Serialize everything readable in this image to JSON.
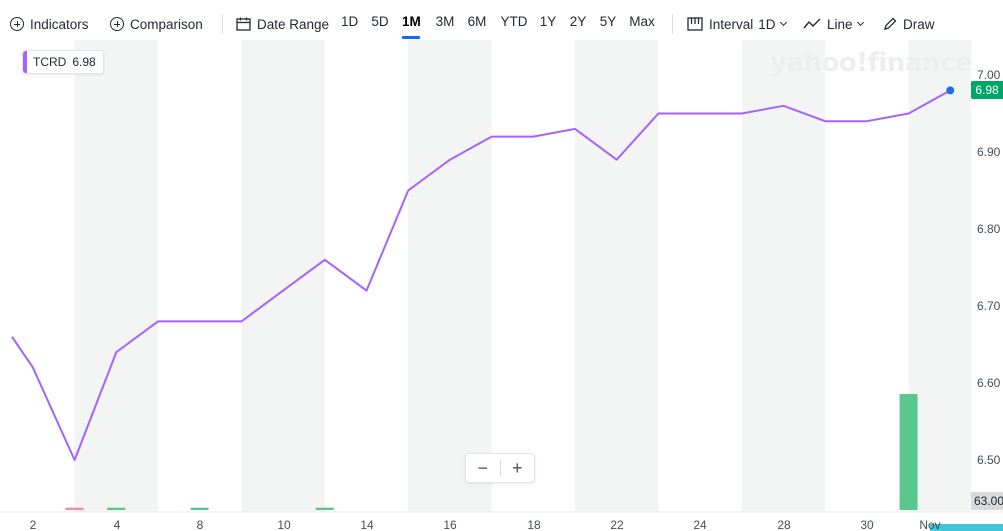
{
  "toolbar": {
    "indicators_label": "Indicators",
    "comparison_label": "Comparison",
    "date_range_label": "Date Range",
    "ranges": [
      "1D",
      "5D",
      "1M",
      "3M",
      "6M",
      "YTD",
      "1Y",
      "2Y",
      "5Y",
      "Max"
    ],
    "active_range": "1M",
    "interval_label": "Interval",
    "interval_value": "1D",
    "chart_type_label": "Line",
    "draw_label": "Draw"
  },
  "legend": {
    "symbol": "TCRD",
    "value": "6.98"
  },
  "watermark": "yahoo!finance",
  "zoom": {
    "minus": "−",
    "plus": "+"
  },
  "colors": {
    "line": "#a562fc",
    "price_tag": "#00a568",
    "volume_up": "#5ac88c",
    "volume_down": "#f28b9a",
    "weekend_band": "#f3f5f4",
    "current_dot": "#1f6fe0",
    "volume_cyan": "#3fc7d9"
  },
  "chart_data": {
    "type": "line",
    "symbol": "TCRD",
    "x_tick_labels": [
      "2",
      "4",
      "8",
      "10",
      "14",
      "16",
      "18",
      "22",
      "24",
      "28",
      "30",
      "Nov"
    ],
    "y_tick_labels": [
      "7.00",
      "6.90",
      "6.80",
      "6.70",
      "6.60",
      "6.50"
    ],
    "ylim": [
      6.44,
      7.02
    ],
    "current_price_label": "6.98",
    "volume_axis_label": "63.00",
    "series": [
      {
        "values": [
          {
            "t": 0.0,
            "v": 6.66
          },
          {
            "t": 0.5,
            "v": 6.62
          },
          {
            "t": 1.5,
            "v": 6.5
          },
          {
            "t": 2.5,
            "v": 6.64
          },
          {
            "t": 3.5,
            "v": 6.68
          },
          {
            "t": 4.5,
            "v": 6.68
          },
          {
            "t": 5.5,
            "v": 6.68
          },
          {
            "t": 6.5,
            "v": 6.72
          },
          {
            "t": 7.5,
            "v": 6.76
          },
          {
            "t": 8.5,
            "v": 6.72
          },
          {
            "t": 9.5,
            "v": 6.85
          },
          {
            "t": 10.5,
            "v": 6.89
          },
          {
            "t": 11.5,
            "v": 6.92
          },
          {
            "t": 12.5,
            "v": 6.92
          },
          {
            "t": 13.5,
            "v": 6.93
          },
          {
            "t": 14.5,
            "v": 6.89
          },
          {
            "t": 15.5,
            "v": 6.95
          },
          {
            "t": 16.5,
            "v": 6.95
          },
          {
            "t": 17.5,
            "v": 6.95
          },
          {
            "t": 18.5,
            "v": 6.96
          },
          {
            "t": 19.5,
            "v": 6.94
          },
          {
            "t": 20.5,
            "v": 6.94
          },
          {
            "t": 21.5,
            "v": 6.95
          },
          {
            "t": 22.5,
            "v": 6.98
          }
        ]
      }
    ],
    "volume_fraction": [
      {
        "t": 1.5,
        "f": 0.02,
        "dir": "down"
      },
      {
        "t": 2.5,
        "f": 0.02,
        "dir": "up"
      },
      {
        "t": 4.5,
        "f": 0.02,
        "dir": "up"
      },
      {
        "t": 7.5,
        "f": 0.02,
        "dir": "up"
      },
      {
        "t": 21.5,
        "f": 1.0,
        "dir": "up"
      }
    ],
    "grid": false,
    "legend_placement": "top-left"
  }
}
